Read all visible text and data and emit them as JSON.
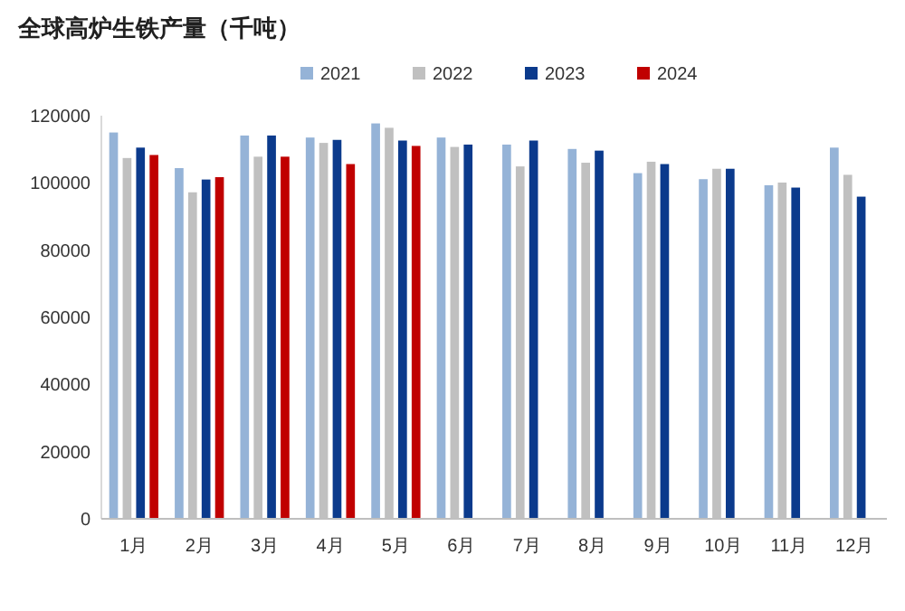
{
  "chart_data": {
    "type": "bar",
    "title": "全球高炉生铁产量（千吨）",
    "categories": [
      "1月",
      "2月",
      "3月",
      "4月",
      "5月",
      "6月",
      "7月",
      "8月",
      "9月",
      "10月",
      "11月",
      "12月"
    ],
    "series": [
      {
        "name": "2021",
        "color": "#95b3d7",
        "values": [
          115000,
          104400,
          114100,
          113500,
          117700,
          113500,
          111400,
          110100,
          102900,
          101100,
          99300,
          110500
        ]
      },
      {
        "name": "2022",
        "color": "#c0c0c0",
        "values": [
          107400,
          97200,
          107800,
          111900,
          116400,
          110700,
          104900,
          106000,
          106300,
          104200,
          100100,
          102400
        ]
      },
      {
        "name": "2023",
        "color": "#0b3a8c",
        "values": [
          110500,
          101000,
          114100,
          112800,
          112600,
          111400,
          112600,
          109600,
          105600,
          104200,
          98600,
          95900
        ]
      },
      {
        "name": "2024",
        "color": "#c00000",
        "values": [
          108300,
          101700,
          107800,
          105600,
          111000,
          null,
          null,
          null,
          null,
          null,
          null,
          null
        ]
      }
    ],
    "ylim": [
      0,
      120000
    ],
    "yticks": [
      0,
      20000,
      40000,
      60000,
      80000,
      100000,
      120000
    ],
    "grid": false,
    "legend": "top"
  }
}
